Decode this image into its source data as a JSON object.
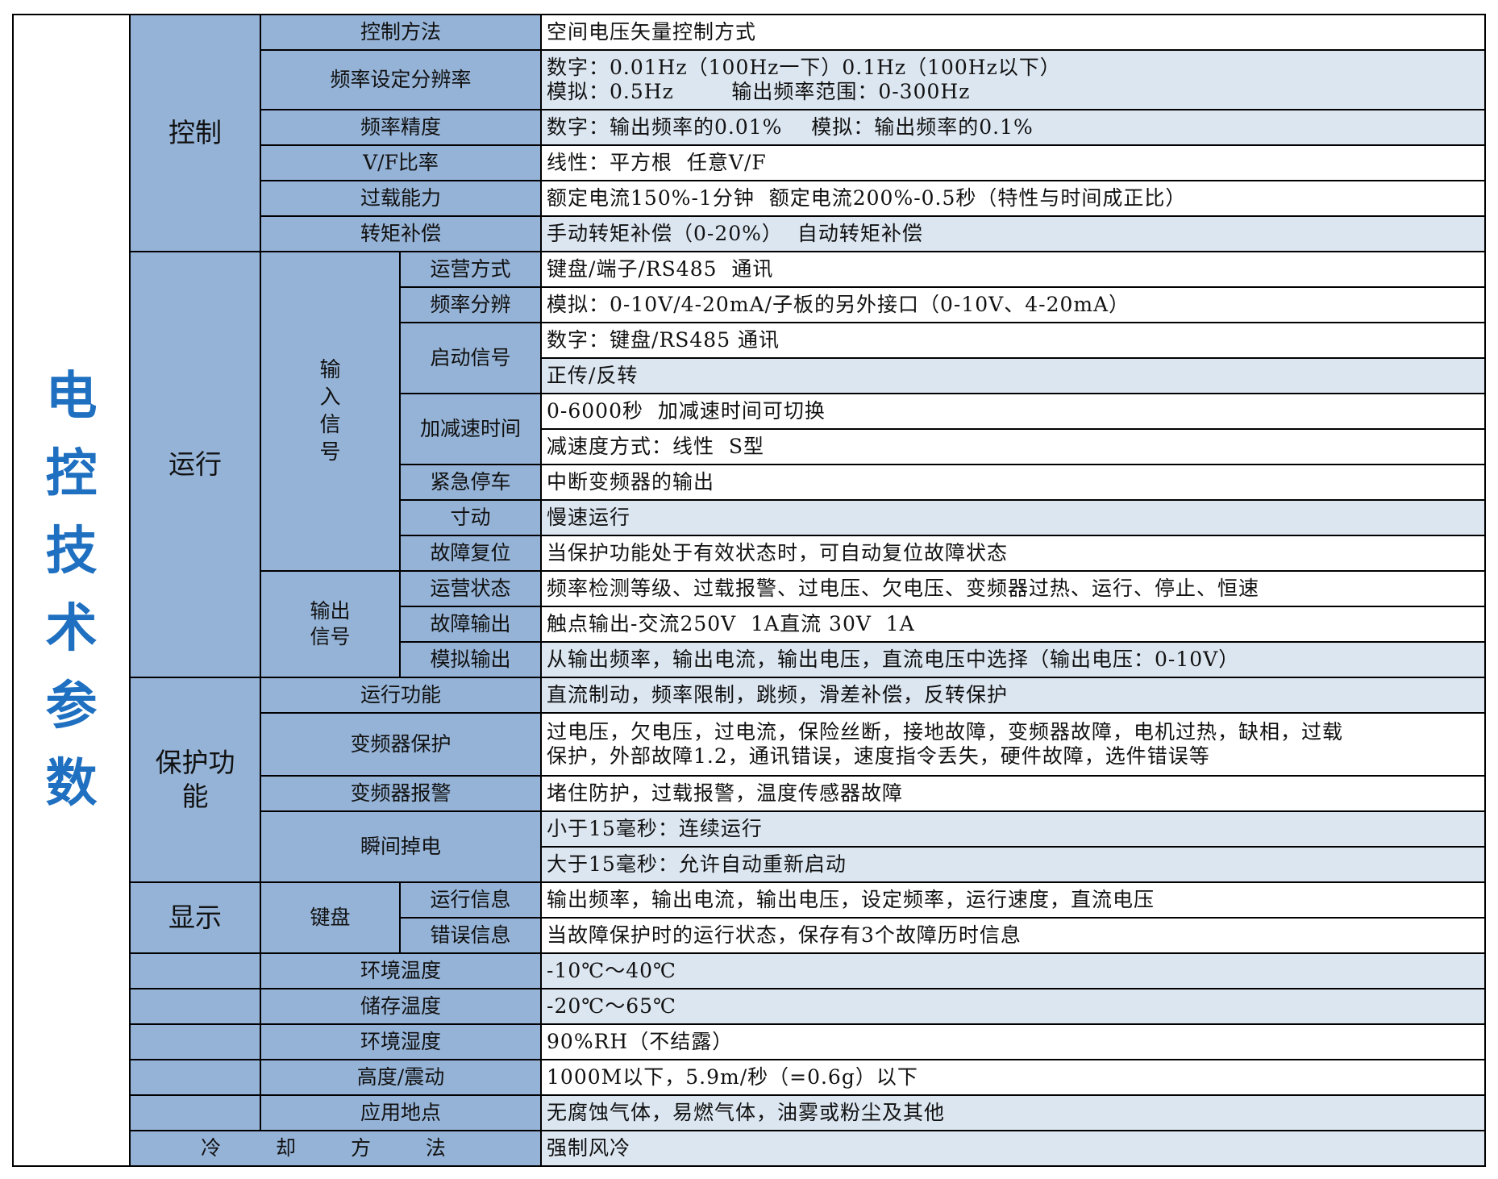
{
  "title_chars": [
    "电",
    "控",
    "技",
    "术",
    "参",
    "数"
  ],
  "groups": {
    "control": "控制",
    "run": "运行",
    "protect": "保护功能",
    "display": "显示"
  },
  "subgroups": {
    "input": "输入信号",
    "output": "输出信号",
    "keypad": "键盘"
  },
  "labels": [
    "控制方法",
    "频率设定分辨率",
    "频率精度",
    "V/F比率",
    "过载能力",
    "转矩补偿",
    "运营方式",
    "频率分辨",
    "启动信号",
    "加减速时间",
    "紧急停车",
    "寸动",
    "故障复位",
    "运营状态",
    "故障输出",
    "模拟输出",
    "运行功能",
    "变频器保护",
    "变频器报警",
    "瞬间掉电",
    "运行信息",
    "错误信息",
    "环境温度",
    "储存温度",
    "环境湿度",
    "高度/震动",
    "应用地点",
    "冷 却 方 法"
  ],
  "values": [
    {
      "text": "空间电压矢量控制方式",
      "shaded": false
    },
    {
      "text": "数字：0.01Hz（100Hz一下）0.1Hz（100Hz以下）\n模拟：0.5Hz        输出频率范围：0-300Hz",
      "shaded": true
    },
    {
      "text": "数字：输出频率的0.01%    模拟：输出频率的0.1%",
      "shaded": true
    },
    {
      "text": "线性：平方根  任意V/F",
      "shaded": false
    },
    {
      "text": "额定电流150%-1分钟  额定电流200%-0.5秒（特性与时间成正比）",
      "shaded": false
    },
    {
      "text": "手动转矩补偿（0-20%）  自动转矩补偿",
      "shaded": true
    },
    {
      "text": "键盘/端子/RS485  通讯",
      "shaded": false
    },
    {
      "text": "模拟：0-10V/4-20mA/子板的另外接口（0-10V、4-20mA）",
      "shaded": false
    },
    {
      "text": "数字：键盘/RS485 通讯",
      "shaded": false
    },
    {
      "text": "正传/反转",
      "shaded": true
    },
    {
      "text": "0-6000秒  加减速时间可切换",
      "shaded": false
    },
    {
      "text": "减速度方式：线性  S型",
      "shaded": false
    },
    {
      "text": "中断变频器的输出",
      "shaded": false
    },
    {
      "text": "慢速运行",
      "shaded": true
    },
    {
      "text": "当保护功能处于有效状态时，可自动复位故障状态",
      "shaded": false
    },
    {
      "text": "频率检测等级、过载报警、过电压、欠电压、变频器过热、运行、停止、恒速",
      "shaded": false
    },
    {
      "text": "触点输出-交流250V  1A直流 30V  1A",
      "shaded": false
    },
    {
      "text": "从输出频率，输出电流，输出电压，直流电压中选择（输出电压：0-10V）",
      "shaded": true
    },
    {
      "text": "直流制动，频率限制，跳频，滑差补偿，反转保护",
      "shaded": true
    },
    {
      "text": "过电压，欠电压，过电流，保险丝断，接地故障，变频器故障，电机过热，缺相，过载\n保护，外部故障1.2，通讯错误，速度指令丢失，硬件故障，选件错误等",
      "shaded": false
    },
    {
      "text": "堵住防护，过载报警，温度传感器故障",
      "shaded": false
    },
    {
      "text": "小于15毫秒：连续运行",
      "shaded": true
    },
    {
      "text": "大于15毫秒：允许自动重新启动",
      "shaded": true
    },
    {
      "text": "输出频率，输出电流，输出电压，设定频率，运行速度，直流电压",
      "shaded": false
    },
    {
      "text": "当故障保护时的运行状态，保存有3个故障历时信息",
      "shaded": false
    },
    {
      "text": "-10℃～40℃",
      "shaded": true
    },
    {
      "text": "-20℃～65℃",
      "shaded": true
    },
    {
      "text": "90%RH（不结露）",
      "shaded": false
    },
    {
      "text": "1000M以下，5.9m/秒（=0.6g）以下",
      "shaded": false
    },
    {
      "text": "无腐蚀气体，易燃气体，油雾或粉尘及其他",
      "shaded": true
    },
    {
      "text": "强制风冷",
      "shaded": true
    }
  ],
  "colors": {
    "header_bg": "#95b3d7",
    "shaded_bg": "#dce6f1",
    "title": "#1f70c1"
  }
}
